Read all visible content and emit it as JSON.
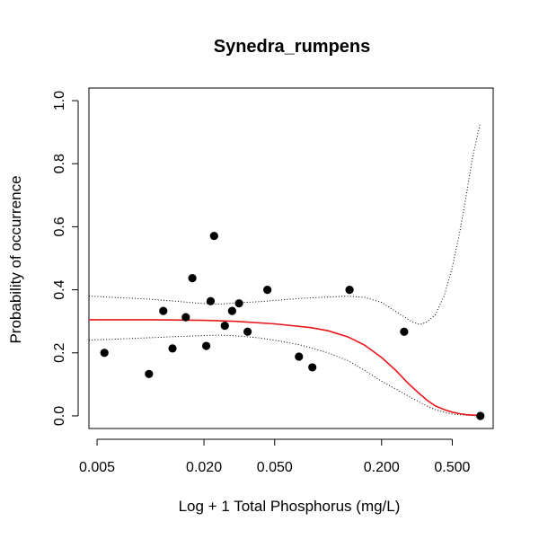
{
  "chart_data": {
    "type": "scatter",
    "title": "Synedra_rumpens",
    "xlabel": "Log + 1 Total Phosphorus (mg/L)",
    "ylabel": "Probability of occurrence",
    "x_scale": "log",
    "xlim": [
      0.0045,
      0.85
    ],
    "ylim": [
      -0.04,
      1.04
    ],
    "x_ticks": [
      0.005,
      0.02,
      0.05,
      0.2,
      0.5
    ],
    "x_tick_labels": [
      "0.005",
      "0.020",
      "0.050",
      "0.200",
      "0.500"
    ],
    "y_ticks": [
      0.0,
      0.2,
      0.4,
      0.6,
      0.8,
      1.0
    ],
    "y_tick_labels": [
      "0.0",
      "0.2",
      "0.4",
      "0.6",
      "0.8",
      "1.0"
    ],
    "grid": false,
    "colors": {
      "fit": "#e8151a",
      "points": "#000000",
      "ci": "#000000"
    },
    "points": [
      {
        "x": 0.0055,
        "y": 0.2
      },
      {
        "x": 0.0098,
        "y": 0.133
      },
      {
        "x": 0.0118,
        "y": 0.333
      },
      {
        "x": 0.0133,
        "y": 0.214
      },
      {
        "x": 0.0158,
        "y": 0.313
      },
      {
        "x": 0.0172,
        "y": 0.437
      },
      {
        "x": 0.0206,
        "y": 0.222
      },
      {
        "x": 0.0218,
        "y": 0.364
      },
      {
        "x": 0.0228,
        "y": 0.571
      },
      {
        "x": 0.0262,
        "y": 0.286
      },
      {
        "x": 0.0288,
        "y": 0.333
      },
      {
        "x": 0.0315,
        "y": 0.357
      },
      {
        "x": 0.0352,
        "y": 0.267
      },
      {
        "x": 0.0455,
        "y": 0.4
      },
      {
        "x": 0.0685,
        "y": 0.188
      },
      {
        "x": 0.0815,
        "y": 0.154
      },
      {
        "x": 0.132,
        "y": 0.4
      },
      {
        "x": 0.268,
        "y": 0.267
      },
      {
        "x": 0.72,
        "y": 0.0
      }
    ],
    "fit": {
      "x": [
        0.0045,
        0.01,
        0.02,
        0.03,
        0.05,
        0.08,
        0.1,
        0.13,
        0.16,
        0.2,
        0.24,
        0.28,
        0.32,
        0.36,
        0.4,
        0.45,
        0.5,
        0.55,
        0.6,
        0.72
      ],
      "y": [
        0.305,
        0.305,
        0.303,
        0.3,
        0.292,
        0.28,
        0.27,
        0.25,
        0.225,
        0.185,
        0.145,
        0.105,
        0.075,
        0.05,
        0.032,
        0.02,
        0.012,
        0.007,
        0.004,
        0.001
      ]
    },
    "ci_upper": {
      "x": [
        0.0045,
        0.01,
        0.015,
        0.02,
        0.025,
        0.03,
        0.04,
        0.05,
        0.07,
        0.1,
        0.13,
        0.16,
        0.2,
        0.25,
        0.3,
        0.33,
        0.36,
        0.4,
        0.45,
        0.5,
        0.55,
        0.6,
        0.65,
        0.72
      ],
      "y": [
        0.38,
        0.37,
        0.362,
        0.356,
        0.355,
        0.358,
        0.362,
        0.366,
        0.373,
        0.377,
        0.38,
        0.376,
        0.36,
        0.325,
        0.297,
        0.29,
        0.298,
        0.32,
        0.38,
        0.47,
        0.58,
        0.7,
        0.82,
        0.93
      ]
    },
    "ci_lower": {
      "x": [
        0.0045,
        0.01,
        0.02,
        0.025,
        0.03,
        0.04,
        0.05,
        0.07,
        0.1,
        0.13,
        0.16,
        0.2,
        0.25,
        0.3,
        0.35,
        0.4,
        0.45,
        0.5,
        0.6,
        0.72
      ],
      "y": [
        0.24,
        0.248,
        0.255,
        0.256,
        0.254,
        0.248,
        0.24,
        0.225,
        0.2,
        0.175,
        0.145,
        0.11,
        0.08,
        0.055,
        0.035,
        0.02,
        0.012,
        0.006,
        0.002,
        0.0
      ]
    }
  }
}
